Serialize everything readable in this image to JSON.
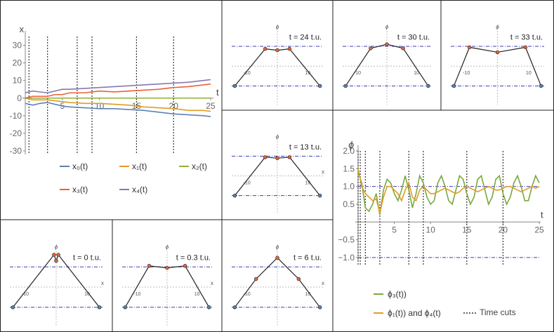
{
  "colors": {
    "blue": "#5e81b5",
    "orange": "#e19c24",
    "green": "#8fb032",
    "red": "#eb6235",
    "purple": "#8778b3",
    "olive_phi3": "#7ba83f",
    "orange_phi": "#e19c24",
    "cut": "#333333",
    "dash": "#3b3bb3",
    "grid": "#bbbbbb"
  },
  "chart_data": [
    {
      "id": "main-x",
      "type": "line",
      "xlabel": "t",
      "ylabel": "x",
      "xlim": [
        0,
        25
      ],
      "ylim": [
        -32,
        35
      ],
      "x_ticks": [
        5,
        10,
        15,
        20,
        25
      ],
      "y_ticks": [
        -30,
        -20,
        -10,
        0,
        10,
        20,
        30
      ],
      "time_cuts": [
        0.5,
        3,
        7,
        9,
        15,
        20
      ],
      "series": [
        {
          "name": "x₀(t)",
          "color": "blue",
          "x": [
            0,
            1,
            2,
            3,
            4,
            5,
            6,
            8,
            10,
            12,
            14,
            16,
            18,
            20,
            22,
            24,
            25
          ],
          "values": [
            -3,
            -4,
            -3,
            -2.5,
            -3.5,
            -4.5,
            -5,
            -5.5,
            -6,
            -6,
            -6.5,
            -7,
            -8,
            -9,
            -9.5,
            -10,
            -10.5
          ]
        },
        {
          "name": "x₁(t)",
          "color": "orange",
          "x": [
            0,
            1,
            2,
            3,
            4,
            5,
            6,
            8,
            10,
            12,
            14,
            16,
            18,
            20,
            22,
            24,
            25
          ],
          "values": [
            0,
            -1,
            -1,
            -1,
            -1.5,
            -2,
            -2.5,
            -3,
            -3,
            -3.5,
            -4,
            -5,
            -5.5,
            -6,
            -7,
            -7,
            -7.5
          ]
        },
        {
          "name": "x₂(t)",
          "color": "green",
          "x": [
            0,
            25
          ],
          "values": [
            0,
            0
          ]
        },
        {
          "name": "x₃(t)",
          "color": "red",
          "x": [
            0,
            1,
            2,
            3,
            4,
            5,
            6,
            8,
            10,
            12,
            14,
            16,
            18,
            20,
            22,
            24,
            25
          ],
          "values": [
            0,
            1,
            1,
            1,
            2,
            2,
            3,
            3,
            4,
            3.5,
            4,
            4.5,
            5,
            6,
            6.5,
            7.5,
            8
          ]
        },
        {
          "name": "x₄(t)",
          "color": "purple",
          "x": [
            0,
            1,
            2,
            3,
            4,
            5,
            6,
            8,
            10,
            12,
            14,
            16,
            18,
            20,
            22,
            24,
            25
          ],
          "values": [
            3,
            4,
            3.5,
            3,
            4,
            5,
            5,
            5.5,
            6,
            6.5,
            7,
            7.5,
            8,
            8.5,
            9,
            10,
            10.5
          ]
        }
      ]
    },
    {
      "id": "main-phi",
      "type": "line",
      "xlabel": "t",
      "ylabel": "ϕ",
      "xlim": [
        0,
        25
      ],
      "ylim": [
        -1.1,
        2.0
      ],
      "x_ticks": [
        5,
        10,
        15,
        20,
        25
      ],
      "y_ticks": [
        -1.0,
        -0.5,
        0.5,
        1.0,
        1.5,
        2.0
      ],
      "y_tick_labels": [
        "−1.0",
        "−0.5",
        "0.5",
        "1.0",
        "1.5",
        "2.0"
      ],
      "dash_levels": [
        1,
        -1
      ],
      "time_cuts": [
        0,
        0.3,
        1,
        3,
        7,
        9,
        15,
        20
      ],
      "series": [
        {
          "name": "ϕ₃(t))",
          "color": "olive_phi3",
          "x": [
            0,
            0.5,
            1,
            1.5,
            2,
            2.5,
            3,
            3.5,
            4,
            4.5,
            5,
            5.5,
            6,
            6.5,
            7,
            7.5,
            8,
            8.5,
            9,
            9.5,
            10,
            10.5,
            11,
            11.5,
            12,
            12.5,
            13,
            13.5,
            14,
            14.5,
            15,
            15.5,
            16,
            16.5,
            17,
            17.5,
            18,
            18.5,
            19,
            19.5,
            20,
            20.5,
            21,
            21.5,
            22,
            22.5,
            23,
            23.5,
            24,
            24.5,
            25
          ],
          "values": [
            1.4,
            1.1,
            0.4,
            0.3,
            0.5,
            0.8,
            0.2,
            0.9,
            1.2,
            1.1,
            0.8,
            0.6,
            0.9,
            1.3,
            0.9,
            0.4,
            0.8,
            1.3,
            1.1,
            0.7,
            0.5,
            0.6,
            1.1,
            1.3,
            1.0,
            0.6,
            0.5,
            0.9,
            1.3,
            1.2,
            0.8,
            0.5,
            0.7,
            1.2,
            1.3,
            0.9,
            0.5,
            0.7,
            1.2,
            1.3,
            0.8,
            0.5,
            0.7,
            1.1,
            1.3,
            1.0,
            0.6,
            0.6,
            1.0,
            1.3,
            1.1
          ]
        },
        {
          "name": "ϕ₁(t)) and ϕ₄(t)",
          "color": "orange_phi",
          "x": [
            0,
            0.5,
            1,
            1.5,
            2,
            2.5,
            3,
            3.5,
            4,
            4.5,
            5,
            5.5,
            6,
            6.5,
            7,
            7.5,
            8,
            8.5,
            9,
            9.5,
            10,
            10.5,
            11,
            11.5,
            12,
            12.5,
            13,
            13.5,
            14,
            14.5,
            15,
            15.5,
            16,
            16.5,
            17,
            17.5,
            18,
            18.5,
            19,
            19.5,
            20,
            20.5,
            21,
            21.5,
            22,
            22.5,
            23,
            23.5,
            24,
            24.5,
            25
          ],
          "values": [
            1.5,
            1.0,
            0.8,
            0.7,
            0.6,
            0.65,
            0.25,
            0.7,
            1.0,
            1.0,
            0.9,
            0.8,
            0.6,
            0.9,
            1.1,
            0.7,
            0.6,
            0.9,
            1.0,
            0.9,
            0.8,
            0.8,
            0.85,
            0.9,
            0.95,
            0.9,
            0.85,
            0.8,
            0.85,
            0.95,
            1.0,
            0.95,
            0.9,
            0.85,
            0.9,
            0.95,
            1.0,
            0.95,
            0.9,
            0.9,
            0.95,
            1.0,
            1.0,
            0.95,
            0.9,
            0.85,
            0.9,
            0.95,
            1.0,
            0.95,
            1.0
          ]
        }
      ]
    },
    {
      "id": "snap-24",
      "type": "line",
      "xlabel": "",
      "title": "t = 24 t.u.",
      "ylabel": "ϕ",
      "x_tick_labels": [
        "-10",
        "10"
      ],
      "x": [
        -14,
        -4,
        0,
        4,
        14
      ],
      "values": [
        -1,
        0.87,
        0.8,
        0.87,
        -1
      ]
    },
    {
      "id": "snap-30",
      "type": "line",
      "xlabel": "",
      "title": "t = 30 t.u.",
      "ylabel": "ϕ",
      "x_tick_labels": [
        "-10",
        "10"
      ],
      "x": [
        -14,
        -5.5,
        0,
        5.5,
        14
      ],
      "values": [
        -1,
        0.9,
        1.1,
        0.9,
        -1
      ]
    },
    {
      "id": "snap-33",
      "type": "line",
      "xlabel": "",
      "title": "t = 33 t.u.",
      "ylabel": "ϕ",
      "x_tick_labels": [
        "-10",
        "10"
      ],
      "x": [
        -14,
        -9,
        0,
        9,
        14
      ],
      "values": [
        -1,
        0.95,
        0.7,
        0.95,
        -1
      ]
    },
    {
      "id": "snap-13",
      "type": "line",
      "xlabel": "x",
      "title": "t = 13 t.u.",
      "ylabel": "ϕ",
      "x_tick_labels": [
        "-10",
        "10"
      ],
      "x": [
        -14,
        -4,
        0,
        4,
        14
      ],
      "values": [
        -1,
        0.95,
        0.9,
        0.95,
        -1
      ]
    },
    {
      "id": "snap-0",
      "type": "line",
      "xlabel": "x",
      "title": "t = 0 t.u.",
      "ylabel": "ϕ",
      "x_tick_labels": [
        "-10",
        "10"
      ],
      "x": [
        -14,
        -0.7,
        0,
        0.7,
        14
      ],
      "values": [
        -1,
        1.6,
        1.3,
        1.6,
        -1
      ]
    },
    {
      "id": "snap-0.3",
      "type": "line",
      "xlabel": "x",
      "title": "t = 0.3 t.u.",
      "ylabel": "ϕ",
      "x_tick_labels": [
        "-10",
        "10"
      ],
      "x": [
        -14,
        -6,
        0,
        6,
        14
      ],
      "values": [
        -1,
        1.05,
        0.95,
        1.05,
        -1
      ]
    },
    {
      "id": "snap-6",
      "type": "line",
      "xlabel": "x",
      "title": "t = 6 t.u.",
      "ylabel": "ϕ",
      "x_tick_labels": [
        "-10",
        "10"
      ],
      "x": [
        -14,
        -7,
        0,
        7,
        14
      ],
      "values": [
        -1,
        0.4,
        1.45,
        0.4,
        -1
      ]
    }
  ],
  "legend_main": {
    "time_cuts_label": "Time cuts"
  }
}
